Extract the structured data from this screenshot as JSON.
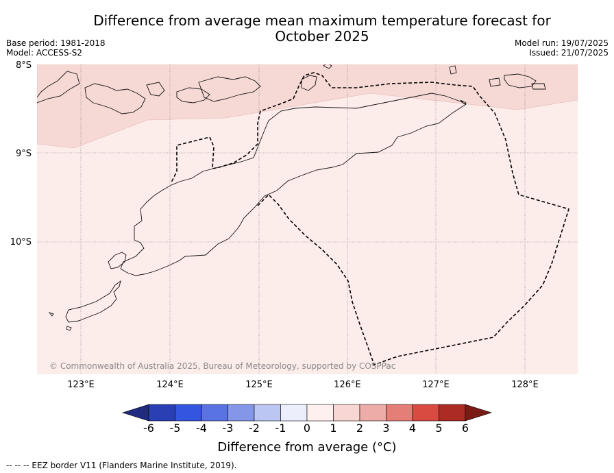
{
  "title_line1": "Difference from average mean maximum temperature forecast for",
  "title_line2": "October 2025",
  "meta": {
    "base_period": "Base period: 1981-2018",
    "model": "Model: ACCESS-S2",
    "model_run": "Model run: 19/07/2025",
    "issued": "Issued: 21/07/2025"
  },
  "map": {
    "region": "Timor Sea / Timor-Leste",
    "lon_range": [
      122.5,
      128.6
    ],
    "lat_range": [
      -11.5,
      -8.0
    ],
    "lat_ticks": [
      "8°S",
      "9°S",
      "10°S"
    ],
    "lon_ticks": [
      "123°E",
      "124°E",
      "125°E",
      "126°E",
      "127°E",
      "128°E"
    ],
    "fill_categories": {
      "north_band": "1 to 2",
      "main_area": "0 to 1"
    },
    "copyright": "© Commonwealth of Australia 2025, Bureau of Meteorology, supported by COSPPac"
  },
  "colorbar": {
    "ticks": [
      "-6",
      "-5",
      "-4",
      "-3",
      "-2",
      "-1",
      "0",
      "1",
      "2",
      "3",
      "4",
      "5",
      "6"
    ],
    "colors": [
      "#1f2a80",
      "#2a3fb4",
      "#3355e0",
      "#5a73e4",
      "#8496e8",
      "#bcc6f2",
      "#eceffb",
      "#fdf0ef",
      "#f8d6d4",
      "#eeaca7",
      "#e57e76",
      "#d94a40",
      "#ac2b24",
      "#7a1c16"
    ],
    "label": "Difference from average (°C)"
  },
  "footer": "--  --  -- EEZ border V11 (Flanders Marine Institute, 2019)."
}
